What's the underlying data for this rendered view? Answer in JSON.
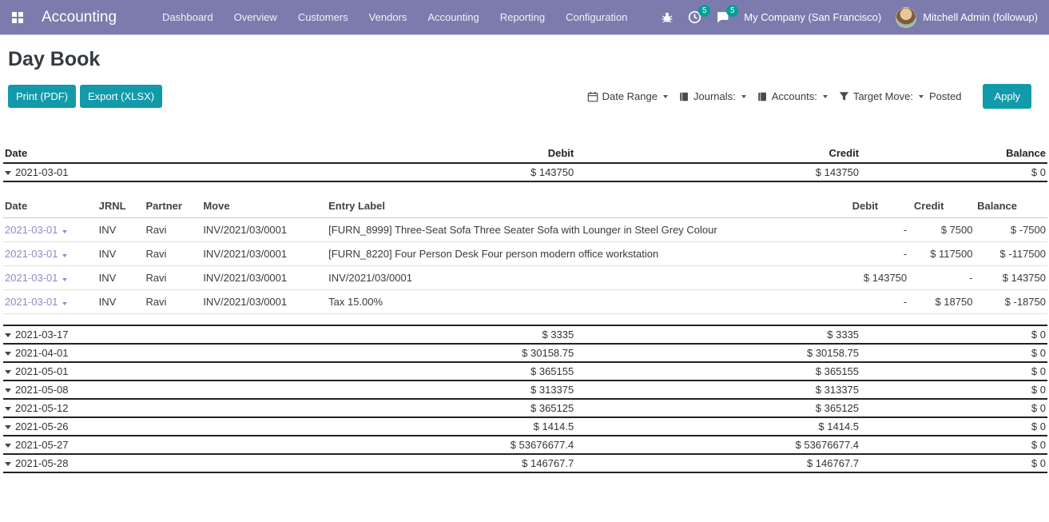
{
  "colors": {
    "brand": "#7c7bad",
    "teal": "#129aaa",
    "badge": "#00a096",
    "link": "#8f8cc9"
  },
  "navbar": {
    "brand": "Accounting",
    "menu": [
      "Dashboard",
      "Overview",
      "Customers",
      "Vendors",
      "Accounting",
      "Reporting",
      "Configuration"
    ],
    "icons": {
      "apps": "grid-icon",
      "debug": "bug-icon",
      "activities": "clock-icon",
      "messages": "chat-icon"
    },
    "activity_count": "5",
    "message_count": "5",
    "company": "My Company (San Francisco)",
    "user": "Mitchell Admin (followup)"
  },
  "page": {
    "title": "Day Book"
  },
  "actions": {
    "print_label": "Print (PDF)",
    "export_label": "Export (XLSX)"
  },
  "filters": {
    "date_range_label": "Date Range",
    "journals_label": "Journals:",
    "accounts_label": "Accounts:",
    "target_move_label": "Target Move:",
    "target_move_value": "Posted",
    "apply_label": "Apply",
    "icons": {
      "date_range": "calendar-icon",
      "journals": "book-icon",
      "accounts": "book-icon",
      "target_move": "funnel-icon"
    }
  },
  "summary": {
    "headers": {
      "date": "Date",
      "debit": "Debit",
      "credit": "Credit",
      "balance": "Balance"
    },
    "groups": [
      {
        "date": "2021-03-01",
        "debit": "$ 143750",
        "credit": "$ 143750",
        "balance": "$ 0",
        "expanded": true
      },
      {
        "date": "2021-03-17",
        "debit": "$ 3335",
        "credit": "$ 3335",
        "balance": "$ 0"
      },
      {
        "date": "2021-04-01",
        "debit": "$ 30158.75",
        "credit": "$ 30158.75",
        "balance": "$ 0"
      },
      {
        "date": "2021-05-01",
        "debit": "$ 365155",
        "credit": "$ 365155",
        "balance": "$ 0"
      },
      {
        "date": "2021-05-08",
        "debit": "$ 313375",
        "credit": "$ 313375",
        "balance": "$ 0"
      },
      {
        "date": "2021-05-12",
        "debit": "$ 365125",
        "credit": "$ 365125",
        "balance": "$ 0"
      },
      {
        "date": "2021-05-26",
        "debit": "$ 1414.5",
        "credit": "$ 1414.5",
        "balance": "$ 0"
      },
      {
        "date": "2021-05-27",
        "debit": "$ 53676677.4",
        "credit": "$ 53676677.4",
        "balance": "$ 0"
      },
      {
        "date": "2021-05-28",
        "debit": "$ 146767.7",
        "credit": "$ 146767.7",
        "balance": "$ 0"
      }
    ]
  },
  "details": {
    "headers": [
      "Date",
      "JRNL",
      "Partner",
      "Move",
      "Entry Label",
      "Debit",
      "Credit",
      "Balance"
    ],
    "rows": [
      {
        "date": "2021-03-01",
        "jrnl": "INV",
        "partner": "Ravi",
        "move": "INV/2021/03/0001",
        "label": "[FURN_8999] Three-Seat Sofa Three Seater Sofa with Lounger in Steel Grey Colour",
        "debit": "-",
        "credit": "$ 7500",
        "balance": "$ -7500"
      },
      {
        "date": "2021-03-01",
        "jrnl": "INV",
        "partner": "Ravi",
        "move": "INV/2021/03/0001",
        "label": "[FURN_8220] Four Person Desk Four person modern office workstation",
        "debit": "-",
        "credit": "$ 117500",
        "balance": "$ -117500"
      },
      {
        "date": "2021-03-01",
        "jrnl": "INV",
        "partner": "Ravi",
        "move": "INV/2021/03/0001",
        "label": "INV/2021/03/0001",
        "debit": "$ 143750",
        "credit": "-",
        "balance": "$ 143750"
      },
      {
        "date": "2021-03-01",
        "jrnl": "INV",
        "partner": "Ravi",
        "move": "INV/2021/03/0001",
        "label": "Tax 15.00%",
        "debit": "-",
        "credit": "$ 18750",
        "balance": "$ -18750"
      }
    ]
  }
}
